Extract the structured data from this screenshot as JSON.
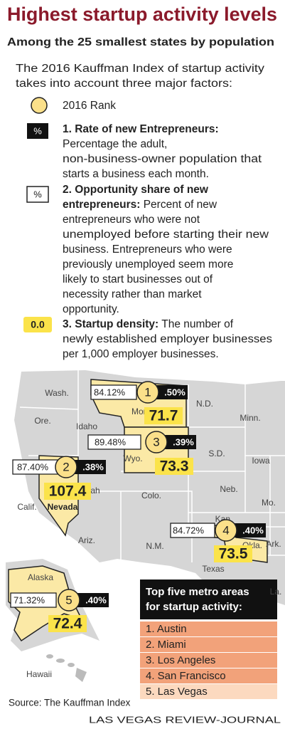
{
  "header": {
    "title": "Highest startup activity levels",
    "subtitle": "Among the 25 smallest states by population"
  },
  "intro": [
    "The 2016 Kauffman Index of startup activity",
    "takes into account three major factors:"
  ],
  "legend": {
    "rank_label": "2016 Rank",
    "items": [
      {
        "symbol": "%",
        "title": "1. Rate of new Entrepreneurs:",
        "lines": [
          "Percentage the adult,",
          "non-business-owner population that",
          "starts a business each month."
        ]
      },
      {
        "symbol": "%",
        "title": [
          "2. Opportunity share of new",
          "entrepreneurs:"
        ],
        "lines": [
          "Percent of new",
          "entrepreneurs who were not",
          "unemployed before starting their new",
          "business.  Entrepreneurs who were",
          "previously unemployed seem more",
          "likely to start businesses out of",
          "necessity rather than market",
          "opportunity."
        ]
      },
      {
        "symbol": "0.0",
        "title": "3. Startup density:",
        "lines": [
          "The number of",
          "newly established employer businesses",
          "per 1,000 employer businesses."
        ]
      }
    ]
  },
  "map": {
    "states": [
      "Wash.",
      "Ore.",
      "Idaho",
      "Mont.",
      "N.D.",
      "Minn.",
      "S.D.",
      "Wyo.",
      "Iowa",
      "Neb.",
      "Utah",
      "Colo.",
      "Kan.",
      "Mo.",
      "Calif.",
      "Nevada",
      "Ariz.",
      "N.M.",
      "Okla.",
      "Ark.",
      "Texas",
      "La.",
      "Alaska",
      "Hawaii"
    ],
    "callouts": [
      {
        "rank": "1",
        "opportunity": "84.12%",
        "rate": ".50%",
        "density": "71.7"
      },
      {
        "rank": "3",
        "opportunity": "89.48%",
        "rate": ".39%",
        "density": "73.3"
      },
      {
        "rank": "2",
        "opportunity": "87.40%",
        "rate": ".38%",
        "density": "107.4"
      },
      {
        "rank": "4",
        "opportunity": "84.72%",
        "rate": ".40%",
        "density": "73.5"
      },
      {
        "rank": "5",
        "opportunity": "71.32%",
        "rate": ".40%",
        "density": "72.4"
      }
    ]
  },
  "metro": {
    "title": [
      "Top five metro areas",
      "for startup activity:"
    ],
    "items": [
      "1. Austin",
      "2. Miami",
      "3. Los Angeles",
      "4. San Francisco",
      "5. Las Vegas"
    ]
  },
  "source": "Source: The Kauffman Index",
  "credit": "LAS VEGAS REVIEW-JOURNAL"
}
